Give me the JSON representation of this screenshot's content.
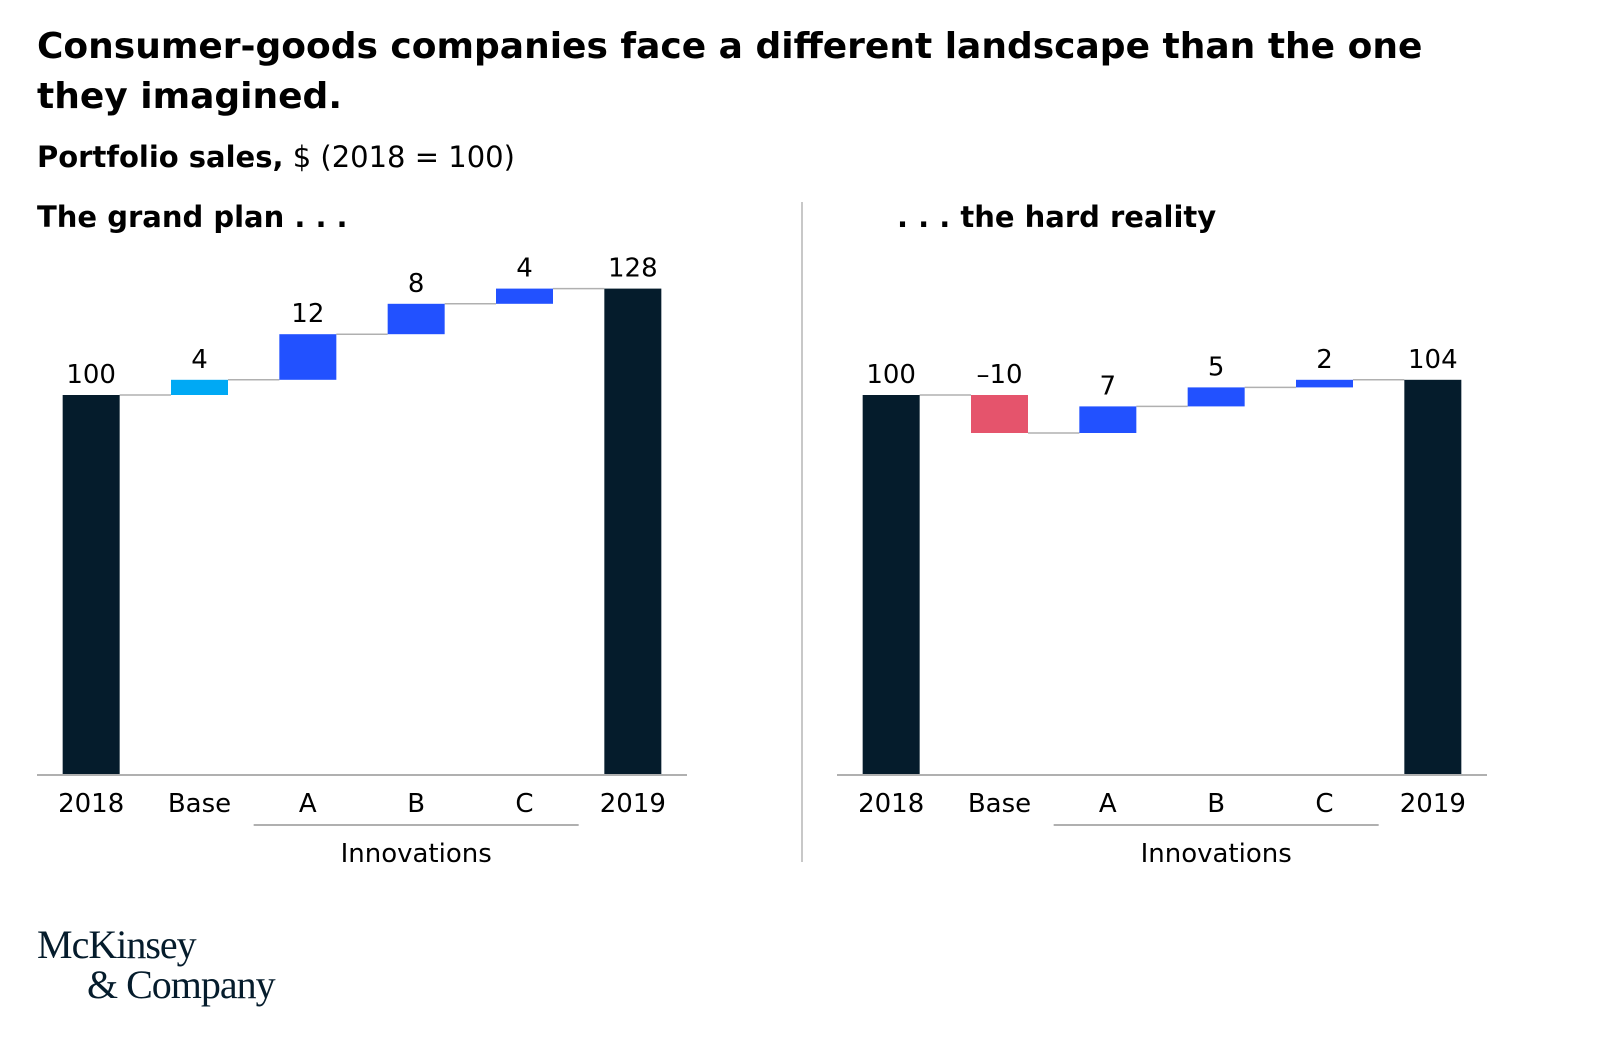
{
  "title": "Consumer-goods companies face a different landscape than the one they imagined.",
  "subtitle_bold": "Portfolio sales,",
  "subtitle_rest": " $ (2018 = 100)",
  "logo": {
    "line1": "McKinsey",
    "line2": "& Company"
  },
  "colors": {
    "total": "#051c2c",
    "base_positive": "#00a9f4",
    "base_negative": "#e5546c",
    "innovation": "#2251ff",
    "axis": "#b0b0b0",
    "connector": "#b0b0b0"
  },
  "chart_data": [
    {
      "type": "waterfall",
      "title": "The grand plan . . .",
      "categories": [
        "2018",
        "Base",
        "A",
        "B",
        "C",
        "2019"
      ],
      "values": [
        100,
        4,
        12,
        8,
        4,
        128
      ],
      "labels": [
        "100",
        "4",
        "12",
        "8",
        "4",
        "128"
      ],
      "kinds": [
        "total",
        "base",
        "innovation",
        "innovation",
        "innovation",
        "total"
      ],
      "group_label": "Innovations",
      "group_categories": [
        "A",
        "B",
        "C"
      ],
      "ylim": [
        0,
        135
      ]
    },
    {
      "type": "waterfall",
      "title": ". . . the hard reality",
      "categories": [
        "2018",
        "Base",
        "A",
        "B",
        "C",
        "2019"
      ],
      "values": [
        100,
        -10,
        7,
        5,
        2,
        104
      ],
      "labels": [
        "100",
        "–10",
        "7",
        "5",
        "2",
        "104"
      ],
      "kinds": [
        "total",
        "base",
        "innovation",
        "innovation",
        "innovation",
        "total"
      ],
      "group_label": "Innovations",
      "group_categories": [
        "A",
        "B",
        "C"
      ],
      "ylim": [
        0,
        135
      ]
    }
  ]
}
